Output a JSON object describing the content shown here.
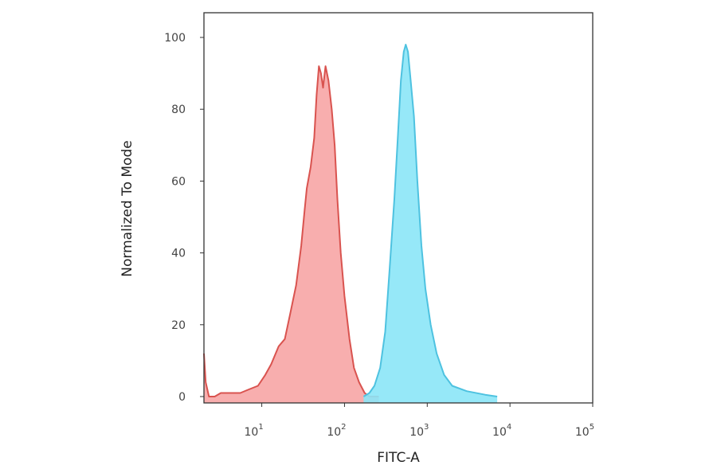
{
  "chart_data": {
    "type": "area",
    "title": "",
    "xlabel": "FITC-A",
    "ylabel": "Normalized To Mode",
    "x_scale": "log",
    "xlim": [
      2,
      100000
    ],
    "ylim": [
      0,
      100
    ],
    "x_ticks": [
      {
        "value": 10,
        "base": "10",
        "exp": "1"
      },
      {
        "value": 100,
        "base": "10",
        "exp": "2"
      },
      {
        "value": 1000,
        "base": "10",
        "exp": "3"
      },
      {
        "value": 10000,
        "base": "10",
        "exp": "4"
      },
      {
        "value": 100000,
        "base": "10",
        "exp": "5"
      }
    ],
    "y_ticks": [
      0,
      20,
      40,
      60,
      80,
      100
    ],
    "grid": false,
    "legend": "none",
    "series": [
      {
        "color": "#f7a5a5",
        "stroke": "#d9534f",
        "points": [
          [
            2.0,
            12
          ],
          [
            2.1,
            4
          ],
          [
            2.3,
            0
          ],
          [
            2.7,
            0
          ],
          [
            3.2,
            1
          ],
          [
            4.5,
            1
          ],
          [
            5.5,
            1
          ],
          [
            7,
            2
          ],
          [
            9,
            3
          ],
          [
            11,
            6
          ],
          [
            13,
            9
          ],
          [
            16,
            14
          ],
          [
            19,
            16
          ],
          [
            22,
            23
          ],
          [
            26,
            31
          ],
          [
            30,
            42
          ],
          [
            33,
            52
          ],
          [
            35,
            58
          ],
          [
            39,
            64
          ],
          [
            43,
            72
          ],
          [
            46,
            84
          ],
          [
            49,
            92
          ],
          [
            52,
            90
          ],
          [
            55,
            86
          ],
          [
            59,
            92
          ],
          [
            64,
            88
          ],
          [
            70,
            80
          ],
          [
            76,
            70
          ],
          [
            82,
            55
          ],
          [
            90,
            40
          ],
          [
            100,
            28
          ],
          [
            115,
            16
          ],
          [
            130,
            8
          ],
          [
            150,
            4
          ],
          [
            175,
            1
          ],
          [
            200,
            0
          ],
          [
            260,
            0
          ]
        ]
      },
      {
        "color": "#8be5f7",
        "stroke": "#4ec2e0",
        "points": [
          [
            170,
            0
          ],
          [
            200,
            1
          ],
          [
            230,
            3
          ],
          [
            270,
            8
          ],
          [
            310,
            18
          ],
          [
            350,
            35
          ],
          [
            400,
            55
          ],
          [
            440,
            72
          ],
          [
            480,
            88
          ],
          [
            520,
            96
          ],
          [
            550,
            98
          ],
          [
            585,
            96
          ],
          [
            630,
            88
          ],
          [
            690,
            78
          ],
          [
            760,
            60
          ],
          [
            850,
            42
          ],
          [
            950,
            30
          ],
          [
            1100,
            20
          ],
          [
            1300,
            12
          ],
          [
            1600,
            6
          ],
          [
            2000,
            3
          ],
          [
            3000,
            1.5
          ],
          [
            5000,
            0.5
          ],
          [
            7000,
            0
          ]
        ]
      }
    ]
  }
}
